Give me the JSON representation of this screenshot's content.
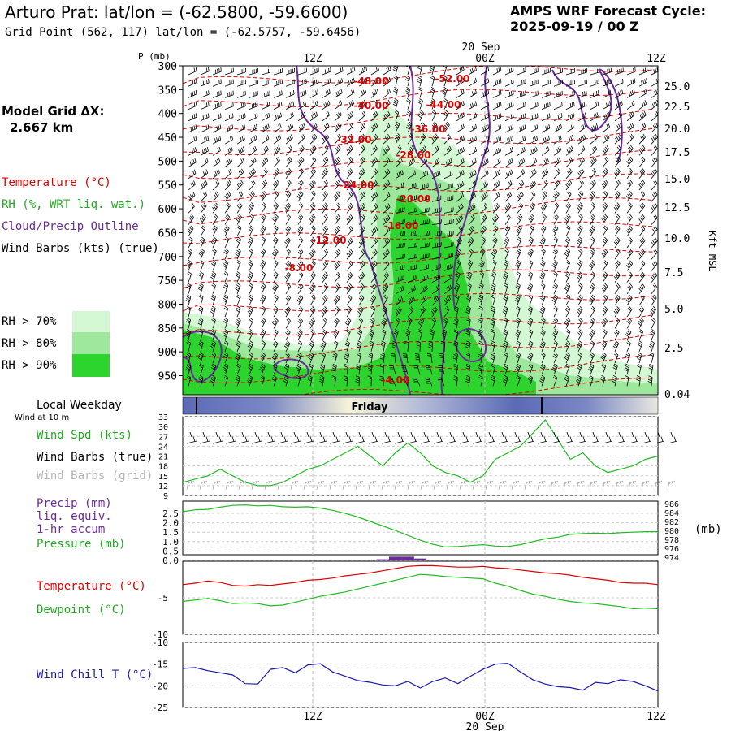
{
  "header": {
    "title": "Arturo Prat:  lat/lon = (-62.5800, -59.6600)",
    "grid_point": "Grid Point (562, 117) lat/lon = (-62.5757, -59.6456)",
    "cycle_label": "AMPS WRF Forecast Cycle:",
    "cycle_value": "2025-09-19 / 00  Z",
    "date_label": "20 Sep"
  },
  "left_labels": {
    "model_grid": "Model Grid ΔX:",
    "model_grid_value": "2.667 km",
    "temperature": "Temperature (°C)",
    "rh": "RH (%, WRT liq. wat.)",
    "cloud": "Cloud/Precip Outline",
    "wind_barbs": "Wind Barbs (kts) (true)",
    "rh70": "RH > 70%",
    "rh80": "RH > 80%",
    "rh90": "RH > 90%",
    "local_weekday": "Local Weekday",
    "wind_10m": "Wind at 10 m",
    "wind_spd": "Wind Spd (kts)",
    "wind_barbs_true": "Wind Barbs (true)",
    "wind_barbs_grid": "Wind Barbs (grid)",
    "precip": "Precip (mm)",
    "liq_equiv": "liq. equiv.",
    "accum": "1-hr accum",
    "pressure": "Pressure (mb)",
    "temp2": "Temperature (°C)",
    "dewpoint": "Dewpoint (°C)",
    "windchill": "Wind Chill T (°C)",
    "mb_unit": "(mb)",
    "kft": "Kft MSL"
  },
  "colors": {
    "temperature": "#dd0000",
    "rh": "#22bb22",
    "cloud": "#6a2a9a",
    "wind_grid": "#aaaaaa",
    "rh70": "#d4f7d4",
    "rh80": "#9ee89e",
    "rh90": "#2ed42e",
    "windchill": "#1a1aaa",
    "weekday_bar": "#5b6ab5"
  },
  "chart_data": [
    {
      "type": "area",
      "name": "cross-section",
      "x_ticks": [
        "12Z",
        "00Z",
        "12Z"
      ],
      "y_label": "P (mb)",
      "y_ticks": [
        "300",
        "350",
        "400",
        "450",
        "500",
        "550",
        "600",
        "650",
        "700",
        "750",
        "800",
        "850",
        "900",
        "950"
      ],
      "y_range": [
        300,
        990
      ],
      "right_ticks": [
        "25.0",
        "22.5",
        "20.0",
        "17.5",
        "15.0",
        "12.5",
        "10.0",
        "7.5",
        "5.0",
        "2.5",
        "0.04"
      ],
      "temperature_labels": [
        "-48.00",
        "-52.00",
        "-40.00",
        "-44.00",
        "-36.00",
        "-32.00",
        "-28.00",
        "-24.00",
        "-20.00",
        "-16.00",
        "-12.00",
        "-8.00",
        "-4.00"
      ]
    },
    {
      "type": "table",
      "name": "local-weekday",
      "label": "Friday"
    },
    {
      "type": "line",
      "name": "wind-speed",
      "ylabel": "Wind Spd (kts)",
      "y_ticks": [
        "33",
        "30",
        "27",
        "24",
        "21",
        "18",
        "15",
        "12",
        "9"
      ],
      "ylim": [
        9,
        33
      ],
      "values": [
        13,
        14,
        15,
        17,
        15,
        13,
        12,
        12,
        13,
        15,
        17,
        18,
        20,
        22,
        24,
        21,
        18,
        22,
        25,
        22,
        18,
        16,
        15,
        13,
        15,
        20,
        22,
        24,
        28,
        32,
        26,
        20,
        22,
        18,
        16,
        17,
        18,
        20,
        21
      ]
    },
    {
      "type": "line",
      "name": "precip-pressure",
      "y_ticks_left": [
        "2.5",
        "2.0",
        "1.5",
        "1.0",
        "0.5",
        "0.0"
      ],
      "y_ticks_right": [
        "986",
        "984",
        "982",
        "980",
        "978",
        "976",
        "974"
      ],
      "pressure_range": [
        974,
        986
      ],
      "pressure_values": [
        984.2,
        984.6,
        984.7,
        985.2,
        985.6,
        985.7,
        985.5,
        985.6,
        985.3,
        985.2,
        985.3,
        985.0,
        984.5,
        983.8,
        983.0,
        982.0,
        981.0,
        980.0,
        978.9,
        977.8,
        976.9,
        976.3,
        976.4,
        976.6,
        976.8,
        976.5,
        976.4,
        976.8,
        977.5,
        978.1,
        978.5,
        979.1,
        979.3,
        979.4,
        979.3,
        979.5,
        979.6,
        979.7,
        979.7
      ],
      "precip_values": [
        0,
        0,
        0,
        0,
        0,
        0,
        0,
        0,
        0,
        0,
        0,
        0,
        0,
        0,
        0,
        0,
        0.06,
        0.2,
        0.2,
        0.1,
        0,
        0,
        0,
        0,
        0,
        0,
        0,
        0,
        0,
        0,
        0,
        0,
        0,
        0,
        0,
        0,
        0,
        0,
        0
      ]
    },
    {
      "type": "line",
      "name": "temperature-dewpoint",
      "y_ticks": [
        "-5",
        "-10"
      ],
      "ylim": [
        -10,
        0
      ],
      "temperature_values": [
        -3.2,
        -3.0,
        -2.7,
        -2.9,
        -3.3,
        -3.4,
        -3.2,
        -3.3,
        -3.1,
        -2.9,
        -2.6,
        -2.5,
        -2.3,
        -2.0,
        -1.8,
        -1.6,
        -1.3,
        -1.0,
        -0.7,
        -0.6,
        -0.6,
        -0.7,
        -0.8,
        -0.8,
        -0.7,
        -0.9,
        -1.0,
        -1.2,
        -1.4,
        -1.6,
        -1.7,
        -1.9,
        -2.2,
        -2.4,
        -2.6,
        -2.9,
        -3.0,
        -3.0,
        -3.2
      ],
      "dewpoint_values": [
        -5.5,
        -5.3,
        -5.1,
        -5.4,
        -5.8,
        -5.7,
        -5.8,
        -6.1,
        -6.0,
        -5.6,
        -5.2,
        -4.8,
        -4.5,
        -4.2,
        -3.8,
        -3.4,
        -3.0,
        -2.6,
        -2.2,
        -1.8,
        -1.9,
        -2.1,
        -2.2,
        -2.3,
        -2.4,
        -3.0,
        -3.4,
        -4.0,
        -4.5,
        -4.8,
        -5.2,
        -5.5,
        -5.7,
        -5.8,
        -6.0,
        -6.2,
        -6.5,
        -6.4,
        -6.5
      ]
    },
    {
      "type": "line",
      "name": "wind-chill",
      "ylabel": "Wind Chill T (°C)",
      "y_ticks": [
        "-10",
        "-15",
        "-20",
        "-25"
      ],
      "ylim": [
        -25,
        -10
      ],
      "values": [
        -16.0,
        -15.8,
        -16.5,
        -17.0,
        -17.5,
        -19.5,
        -19.6,
        -16.2,
        -15.8,
        -17.0,
        -15.2,
        -14.9,
        -16.8,
        -17.8,
        -18.8,
        -19.2,
        -19.8,
        -20.0,
        -19.0,
        -20.5,
        -19.0,
        -18.2,
        -19.5,
        -17.8,
        -16.2,
        -15.0,
        -14.8,
        -16.8,
        -18.6,
        -19.6,
        -20.2,
        -20.4,
        -21.0,
        -19.2,
        -19.5,
        -18.6,
        -19.0,
        -20.0,
        -21.2
      ]
    }
  ]
}
